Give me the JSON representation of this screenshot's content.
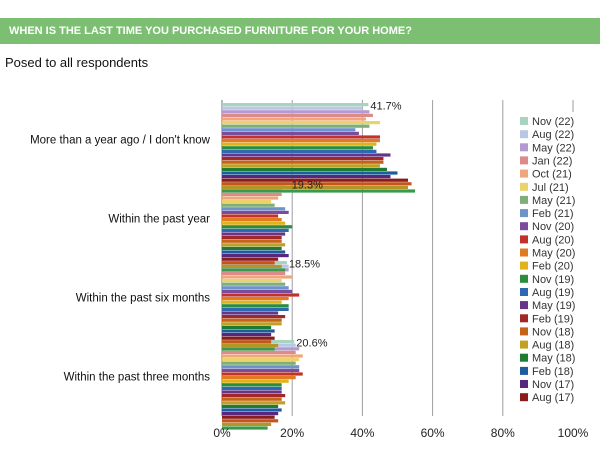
{
  "header": {
    "question": "WHEN IS THE LAST TIME YOU PURCHASED FURNITURE FOR YOUR HOME?",
    "subtitle": "Posed to all respondents"
  },
  "chart_data": {
    "type": "bar",
    "orientation": "horizontal",
    "categories": [
      "More than a year ago / I don't know",
      "Within the past year",
      "Within the past six months",
      "Within the past three months"
    ],
    "xlim": [
      0,
      100
    ],
    "xticks": [
      "0%",
      "20%",
      "40%",
      "60%",
      "80%",
      "100%"
    ],
    "grid": true,
    "legend_position": "right",
    "data_labels": [
      "41.7%",
      "19.3%",
      "18.5%",
      "20.6%"
    ],
    "series": [
      {
        "name": "Nov (22)",
        "color": "#a9d3c1",
        "values": [
          41.7,
          19.3,
          18.5,
          20.6
        ]
      },
      {
        "name": "Aug (22)",
        "color": "#b8c7e3",
        "values": [
          40,
          18,
          19,
          21
        ]
      },
      {
        "name": "May (22)",
        "color": "#b29bd0",
        "values": [
          42,
          17,
          19,
          22
        ]
      },
      {
        "name": "Jan (22)",
        "color": "#dd8a8a",
        "values": [
          43,
          17,
          18,
          21
        ]
      },
      {
        "name": "Oct (21)",
        "color": "#f0a57a",
        "values": [
          41,
          16,
          20,
          23
        ]
      },
      {
        "name": "Jul (21)",
        "color": "#ecd26c",
        "values": [
          45,
          14,
          17,
          22
        ]
      },
      {
        "name": "May (21)",
        "color": "#7fae78",
        "values": [
          42,
          15,
          18,
          21
        ]
      },
      {
        "name": "Feb (21)",
        "color": "#6e93c9",
        "values": [
          38,
          18,
          19,
          22
        ]
      },
      {
        "name": "Nov (20)",
        "color": "#7a4b9e",
        "values": [
          39,
          19,
          20,
          22
        ]
      },
      {
        "name": "Aug (20)",
        "color": "#c0322a",
        "values": [
          45,
          16,
          22,
          23
        ]
      },
      {
        "name": "May (20)",
        "color": "#e07b1f",
        "values": [
          45,
          17,
          19,
          21
        ]
      },
      {
        "name": "Feb (20)",
        "color": "#e0b31c",
        "values": [
          44,
          18,
          17,
          19
        ]
      },
      {
        "name": "Nov (19)",
        "color": "#2b8c3c",
        "values": [
          43,
          20,
          19,
          17
        ]
      },
      {
        "name": "Aug (19)",
        "color": "#2e69b0",
        "values": [
          44,
          19,
          19,
          17
        ]
      },
      {
        "name": "May (19)",
        "color": "#66358a",
        "values": [
          48,
          18,
          16,
          17
        ]
      },
      {
        "name": "Feb (19)",
        "color": "#a12828",
        "values": [
          46,
          17,
          18,
          18
        ]
      },
      {
        "name": "Nov (18)",
        "color": "#c46419",
        "values": [
          46,
          17,
          17,
          17
        ]
      },
      {
        "name": "Aug (18)",
        "color": "#c2a024",
        "values": [
          45,
          18,
          17,
          18
        ]
      },
      {
        "name": "May (18)",
        "color": "#1f7a32",
        "values": [
          47,
          17,
          14,
          16
        ]
      },
      {
        "name": "Feb (18)",
        "color": "#1d5c9e",
        "values": [
          50,
          18,
          15,
          17
        ]
      },
      {
        "name": "Nov (17)",
        "color": "#56277a",
        "values": [
          48,
          19,
          14,
          16
        ]
      },
      {
        "name": "Aug (17)",
        "color": "#8b1c1c",
        "values": [
          53,
          16,
          15,
          15
        ]
      },
      {
        "name": "",
        "color": "#c4561a",
        "values": [
          54,
          15,
          14,
          16
        ]
      },
      {
        "name": "",
        "color": "#b3952a",
        "values": [
          53,
          17,
          16,
          14
        ]
      },
      {
        "name": "",
        "color": "#3a9a4a",
        "values": [
          55,
          18,
          15,
          13
        ]
      }
    ]
  }
}
